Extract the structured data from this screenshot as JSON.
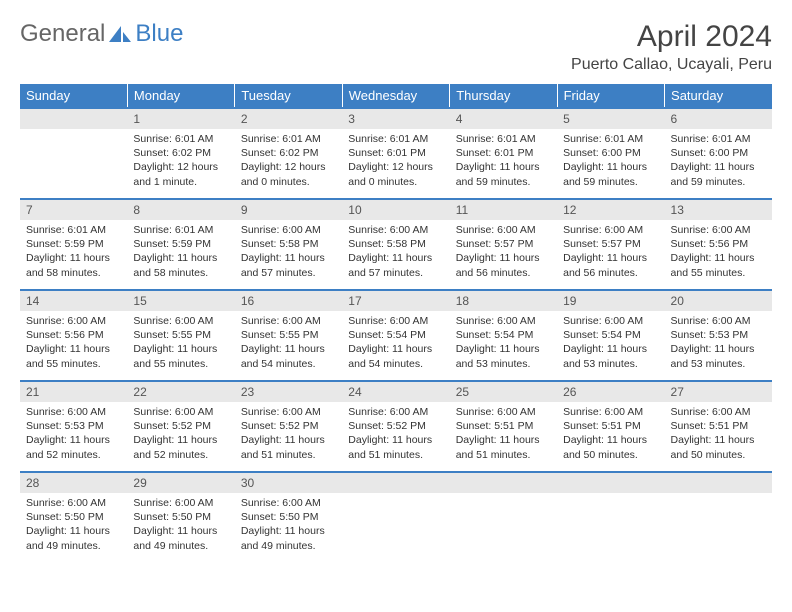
{
  "logo": {
    "word1": "General",
    "word2": "Blue"
  },
  "title": "April 2024",
  "location": "Puerto Callao, Ucayali, Peru",
  "colors": {
    "accent": "#3d7fc4",
    "headbg": "#e8e8e8"
  },
  "daynames": [
    "Sunday",
    "Monday",
    "Tuesday",
    "Wednesday",
    "Thursday",
    "Friday",
    "Saturday"
  ],
  "weeks": [
    {
      "nums": [
        "",
        "1",
        "2",
        "3",
        "4",
        "5",
        "6"
      ],
      "cells": [
        null,
        {
          "sr": "Sunrise: 6:01 AM",
          "ss": "Sunset: 6:02 PM",
          "dl": "Daylight: 12 hours and 1 minute."
        },
        {
          "sr": "Sunrise: 6:01 AM",
          "ss": "Sunset: 6:02 PM",
          "dl": "Daylight: 12 hours and 0 minutes."
        },
        {
          "sr": "Sunrise: 6:01 AM",
          "ss": "Sunset: 6:01 PM",
          "dl": "Daylight: 12 hours and 0 minutes."
        },
        {
          "sr": "Sunrise: 6:01 AM",
          "ss": "Sunset: 6:01 PM",
          "dl": "Daylight: 11 hours and 59 minutes."
        },
        {
          "sr": "Sunrise: 6:01 AM",
          "ss": "Sunset: 6:00 PM",
          "dl": "Daylight: 11 hours and 59 minutes."
        },
        {
          "sr": "Sunrise: 6:01 AM",
          "ss": "Sunset: 6:00 PM",
          "dl": "Daylight: 11 hours and 59 minutes."
        }
      ]
    },
    {
      "nums": [
        "7",
        "8",
        "9",
        "10",
        "11",
        "12",
        "13"
      ],
      "cells": [
        {
          "sr": "Sunrise: 6:01 AM",
          "ss": "Sunset: 5:59 PM",
          "dl": "Daylight: 11 hours and 58 minutes."
        },
        {
          "sr": "Sunrise: 6:01 AM",
          "ss": "Sunset: 5:59 PM",
          "dl": "Daylight: 11 hours and 58 minutes."
        },
        {
          "sr": "Sunrise: 6:00 AM",
          "ss": "Sunset: 5:58 PM",
          "dl": "Daylight: 11 hours and 57 minutes."
        },
        {
          "sr": "Sunrise: 6:00 AM",
          "ss": "Sunset: 5:58 PM",
          "dl": "Daylight: 11 hours and 57 minutes."
        },
        {
          "sr": "Sunrise: 6:00 AM",
          "ss": "Sunset: 5:57 PM",
          "dl": "Daylight: 11 hours and 56 minutes."
        },
        {
          "sr": "Sunrise: 6:00 AM",
          "ss": "Sunset: 5:57 PM",
          "dl": "Daylight: 11 hours and 56 minutes."
        },
        {
          "sr": "Sunrise: 6:00 AM",
          "ss": "Sunset: 5:56 PM",
          "dl": "Daylight: 11 hours and 55 minutes."
        }
      ]
    },
    {
      "nums": [
        "14",
        "15",
        "16",
        "17",
        "18",
        "19",
        "20"
      ],
      "cells": [
        {
          "sr": "Sunrise: 6:00 AM",
          "ss": "Sunset: 5:56 PM",
          "dl": "Daylight: 11 hours and 55 minutes."
        },
        {
          "sr": "Sunrise: 6:00 AM",
          "ss": "Sunset: 5:55 PM",
          "dl": "Daylight: 11 hours and 55 minutes."
        },
        {
          "sr": "Sunrise: 6:00 AM",
          "ss": "Sunset: 5:55 PM",
          "dl": "Daylight: 11 hours and 54 minutes."
        },
        {
          "sr": "Sunrise: 6:00 AM",
          "ss": "Sunset: 5:54 PM",
          "dl": "Daylight: 11 hours and 54 minutes."
        },
        {
          "sr": "Sunrise: 6:00 AM",
          "ss": "Sunset: 5:54 PM",
          "dl": "Daylight: 11 hours and 53 minutes."
        },
        {
          "sr": "Sunrise: 6:00 AM",
          "ss": "Sunset: 5:54 PM",
          "dl": "Daylight: 11 hours and 53 minutes."
        },
        {
          "sr": "Sunrise: 6:00 AM",
          "ss": "Sunset: 5:53 PM",
          "dl": "Daylight: 11 hours and 53 minutes."
        }
      ]
    },
    {
      "nums": [
        "21",
        "22",
        "23",
        "24",
        "25",
        "26",
        "27"
      ],
      "cells": [
        {
          "sr": "Sunrise: 6:00 AM",
          "ss": "Sunset: 5:53 PM",
          "dl": "Daylight: 11 hours and 52 minutes."
        },
        {
          "sr": "Sunrise: 6:00 AM",
          "ss": "Sunset: 5:52 PM",
          "dl": "Daylight: 11 hours and 52 minutes."
        },
        {
          "sr": "Sunrise: 6:00 AM",
          "ss": "Sunset: 5:52 PM",
          "dl": "Daylight: 11 hours and 51 minutes."
        },
        {
          "sr": "Sunrise: 6:00 AM",
          "ss": "Sunset: 5:52 PM",
          "dl": "Daylight: 11 hours and 51 minutes."
        },
        {
          "sr": "Sunrise: 6:00 AM",
          "ss": "Sunset: 5:51 PM",
          "dl": "Daylight: 11 hours and 51 minutes."
        },
        {
          "sr": "Sunrise: 6:00 AM",
          "ss": "Sunset: 5:51 PM",
          "dl": "Daylight: 11 hours and 50 minutes."
        },
        {
          "sr": "Sunrise: 6:00 AM",
          "ss": "Sunset: 5:51 PM",
          "dl": "Daylight: 11 hours and 50 minutes."
        }
      ]
    },
    {
      "nums": [
        "28",
        "29",
        "30",
        "",
        "",
        "",
        ""
      ],
      "cells": [
        {
          "sr": "Sunrise: 6:00 AM",
          "ss": "Sunset: 5:50 PM",
          "dl": "Daylight: 11 hours and 49 minutes."
        },
        {
          "sr": "Sunrise: 6:00 AM",
          "ss": "Sunset: 5:50 PM",
          "dl": "Daylight: 11 hours and 49 minutes."
        },
        {
          "sr": "Sunrise: 6:00 AM",
          "ss": "Sunset: 5:50 PM",
          "dl": "Daylight: 11 hours and 49 minutes."
        },
        null,
        null,
        null,
        null
      ]
    }
  ]
}
